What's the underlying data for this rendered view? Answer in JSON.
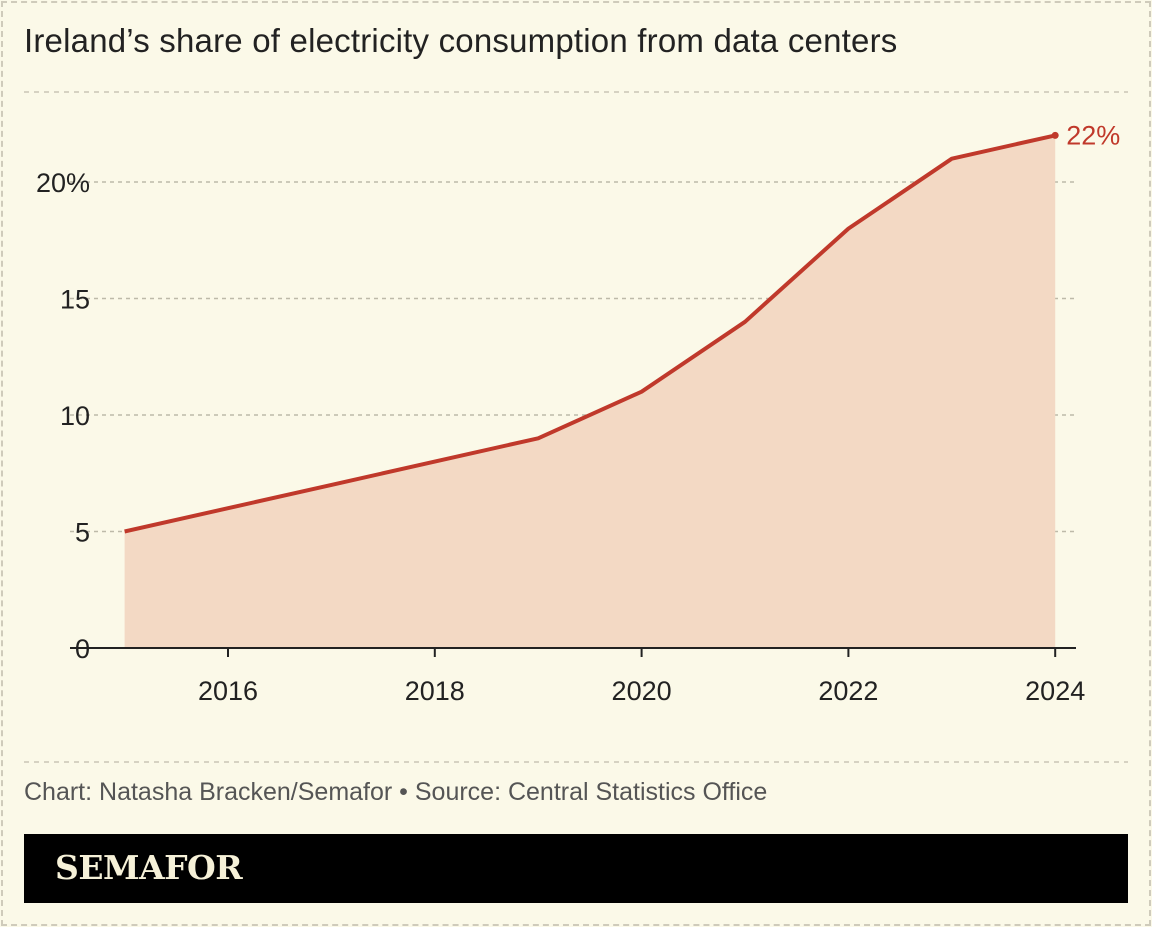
{
  "title": "Ireland’s share of electricity consumption from data centers",
  "credit": "Chart: Natasha Bracken/Semafor • Source: Central Statistics Office",
  "logo": "SEMAFOR",
  "chart_data": {
    "type": "area",
    "title": "Ireland’s share of electricity consumption from data centers",
    "x": [
      2015,
      2016,
      2017,
      2018,
      2019,
      2020,
      2021,
      2022,
      2023,
      2024
    ],
    "values": [
      5,
      6,
      7,
      8,
      9,
      11,
      14,
      18,
      21,
      22
    ],
    "unit": "%",
    "xlim": [
      2015,
      2024
    ],
    "ylim": [
      0,
      25
    ],
    "xticks": [
      "2016",
      "2018",
      "2020",
      "2022",
      "2024"
    ],
    "yticks": [
      "0",
      "5",
      "10",
      "15",
      "20%"
    ],
    "end_label": "22%",
    "grid": true,
    "colors": {
      "line": "#c0392b",
      "fill": "#f3d9c4",
      "background": "#fbf9e8"
    }
  }
}
